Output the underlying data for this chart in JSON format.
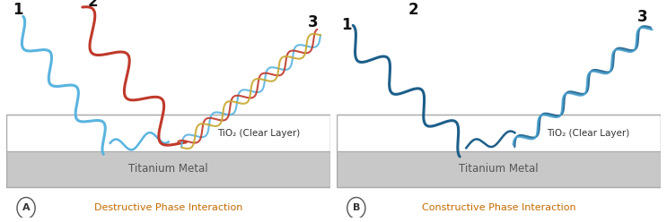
{
  "panel_A_label": "A",
  "panel_B_label": "B",
  "panel_A_title": "Destructive Phase Interaction",
  "panel_B_title": "Constructive Phase Interaction",
  "tio2_label": "TiO₂ (Clear Layer)",
  "metal_label": "Titanium Metal",
  "wave1_color_A": "#5ab4e0",
  "wave2_color_A": "#c0392b",
  "wave3_colors_A": [
    "#5ab4e0",
    "#c0392b",
    "#c8a830"
  ],
  "wave_color_B": "#1d5f8a",
  "wave3_colors_B": [
    "#1d5f8a",
    "#2e7daa",
    "#4aa0cc"
  ],
  "background_color": "#ffffff",
  "border_color": "#aaaaaa",
  "metal_bg": "#c8c8c8",
  "tio2_text_color": "#333333",
  "metal_text_color": "#555555",
  "num_label_color": "#111111",
  "phase_label_color": "#c46a00",
  "circle_color": "#555555"
}
